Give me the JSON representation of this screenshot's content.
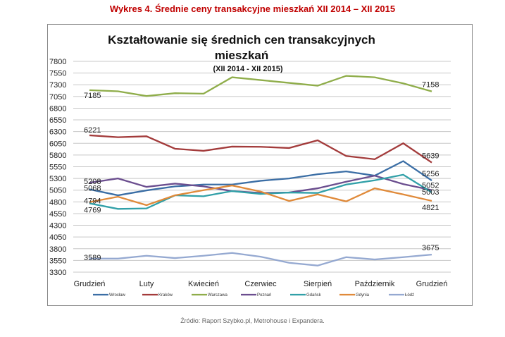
{
  "figure_title": "Wykres 4. Średnie ceny transakcyjne mieszkań XII 2014 – XII 2015",
  "source": "Źródło: Raport Szybko.pl, Metrohouse i Expandera.",
  "chart_data": {
    "type": "line",
    "title": "Kształtowanie się średnich cen transakcyjnych mieszkań",
    "subtitle": "(XII 2014 - XII 2015)",
    "ylim": [
      3300,
      7800
    ],
    "yticks": [
      3300,
      3550,
      3800,
      4050,
      4300,
      4550,
      4800,
      5050,
      5300,
      5550,
      5800,
      6050,
      6300,
      6550,
      6800,
      7050,
      7300,
      7550,
      7800
    ],
    "x_tick_labels": [
      "Grudzień",
      "",
      "Luty",
      "",
      "Kwiecień",
      "",
      "Czerwiec",
      "",
      "Sierpień",
      "",
      "Październik",
      "",
      "Grudzień"
    ],
    "grid": true,
    "legend_position": "bottom",
    "series": [
      {
        "name": "Wrocław",
        "color": "#3b6ea5",
        "values": [
          5068,
          4940,
          5045,
          5130,
          5170,
          5170,
          5250,
          5300,
          5390,
          5450,
          5360,
          5670,
          5256
        ],
        "labels": {
          "first": "5068",
          "last": "5256"
        }
      },
      {
        "name": "Kraków",
        "color": "#a33b3b",
        "values": [
          6221,
          6180,
          6200,
          5934,
          5890,
          5980,
          5975,
          5950,
          6115,
          5780,
          5710,
          6050,
          5639
        ],
        "labels": {
          "first": "6221",
          "last": "5639"
        }
      },
      {
        "name": "Warszawa",
        "color": "#8fad4a",
        "values": [
          7185,
          7160,
          7060,
          7120,
          7110,
          7460,
          7400,
          7340,
          7280,
          7490,
          7460,
          7330,
          7158
        ],
        "labels": {
          "first": "7185",
          "last": "7158"
        }
      },
      {
        "name": "Poznań",
        "color": "#6b4e8f",
        "values": [
          5208,
          5300,
          5120,
          5190,
          5130,
          5030,
          4990,
          5000,
          5090,
          5230,
          5360,
          5180,
          5052
        ],
        "labels": {
          "first": "5208",
          "last": "5052"
        }
      },
      {
        "name": "Gdańsk",
        "color": "#31a0a8",
        "values": [
          4769,
          4650,
          4660,
          4940,
          4920,
          5030,
          4970,
          5000,
          4990,
          5170,
          5260,
          5380,
          5003
        ],
        "labels": {
          "first": "4769",
          "last": "5003"
        }
      },
      {
        "name": "Gdynia",
        "color": "#e08a3a",
        "values": [
          4794,
          4910,
          4730,
          4940,
          5050,
          5150,
          5020,
          4820,
          4960,
          4810,
          5090,
          4960,
          4821
        ],
        "labels": {
          "first": "4794",
          "last": "4821"
        }
      },
      {
        "name": "Łódź",
        "color": "#95a9d1",
        "values": [
          3589,
          3589,
          3650,
          3600,
          3650,
          3710,
          3630,
          3500,
          3440,
          3620,
          3570,
          3620,
          3675
        ],
        "labels": {
          "first": "3589",
          "last": "3675"
        }
      }
    ]
  }
}
